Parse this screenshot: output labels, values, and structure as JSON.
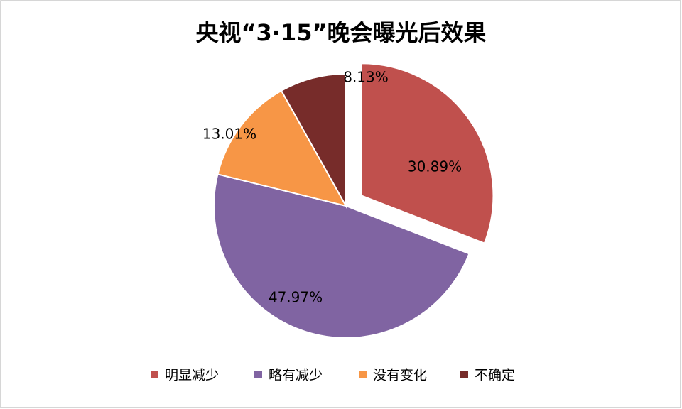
{
  "chart_data": {
    "type": "pie",
    "title": "央视“3·15”晚会曝光后效果",
    "categories": [
      "明显减少",
      "略有减少",
      "没有变化",
      "不确定"
    ],
    "values": [
      30.89,
      47.97,
      13.01,
      8.13
    ],
    "value_labels": [
      "30.89%",
      "47.97%",
      "13.01%",
      "8.13%"
    ],
    "colors": [
      "#c0504d",
      "#8064a2",
      "#f79646",
      "#772c2a"
    ],
    "legend": "bottom"
  }
}
